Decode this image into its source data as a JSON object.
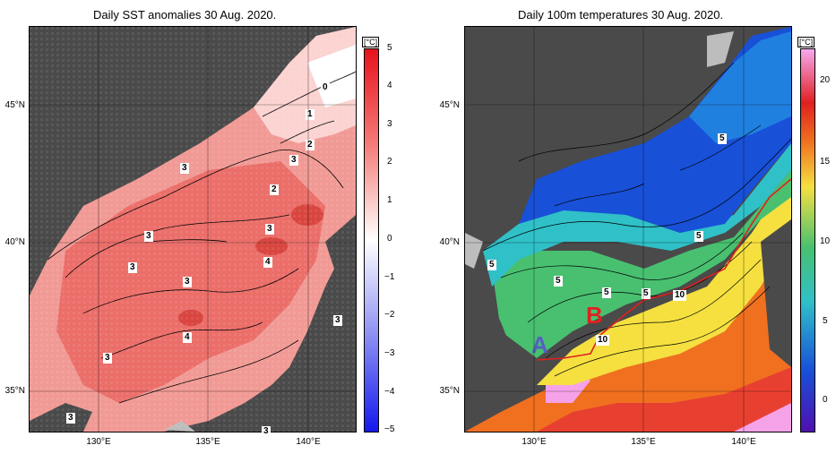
{
  "left_panel": {
    "title": "Daily SST anomalies 30 Aug. 2020.",
    "lat_labels": [
      "45°N",
      "40°N",
      "35°N"
    ],
    "lon_labels": [
      "130°E",
      "135°E",
      "140°E"
    ],
    "colorbar": {
      "unit": "[°C]",
      "ticks": [
        "5",
        "4",
        "3",
        "2",
        "1",
        "0",
        "−1",
        "−2",
        "−3",
        "−4",
        "−5"
      ],
      "colors": {
        "max": "#e8121b",
        "mid": "#ffffff",
        "min": "#1418ee"
      }
    },
    "contour_labels": [
      "0",
      "1",
      "2",
      "3",
      "2",
      "3",
      "3",
      "3",
      "4",
      "3",
      "3",
      "4",
      "3",
      "3",
      "3",
      "3"
    ]
  },
  "right_panel": {
    "title": "Daily 100m temperatures 30 Aug. 2020.",
    "lat_labels": [
      "45°N",
      "40°N",
      "35°N"
    ],
    "lon_labels": [
      "130°E",
      "135°E",
      "140°E"
    ],
    "colorbar": {
      "unit": "[°C]",
      "ticks": [
        "20",
        "15",
        "10",
        "5",
        "0"
      ]
    },
    "contour_labels": [
      "5",
      "5",
      "5",
      "5",
      "5",
      "5",
      "10",
      "10"
    ],
    "markers": {
      "a": "A",
      "b": "B"
    },
    "marker_colors": {
      "a": "#5560c0",
      "b": "#e02020"
    }
  },
  "colors": {
    "land": "#4a4a4a",
    "missing": "#bdbdbd",
    "front_line": "#e02020"
  }
}
